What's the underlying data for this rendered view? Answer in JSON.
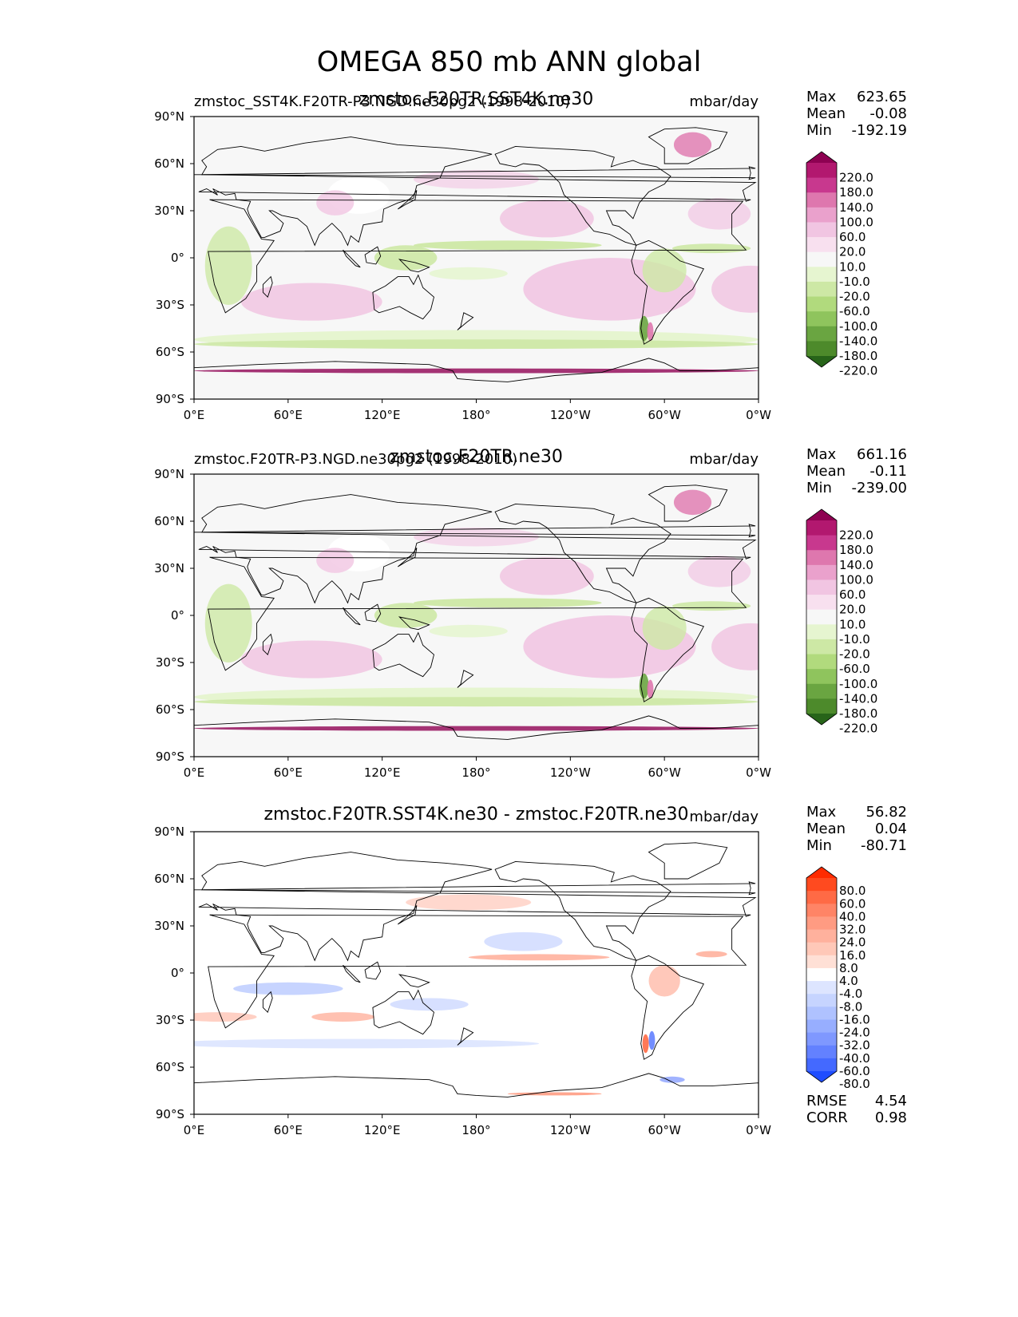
{
  "title": "OMEGA 850 mb ANN global",
  "axes": {
    "lat_ticks": [
      "90°N",
      "60°N",
      "30°N",
      "0°",
      "30°S",
      "60°S",
      "90°S"
    ],
    "lon_ticks": [
      "0°E",
      "60°E",
      "120°E",
      "180°",
      "120°W",
      "60°W",
      "0°W"
    ]
  },
  "panels": [
    {
      "left_label": "zmstoc_SST4K.F20TR-P3.NGD.ne30pg2 (1998-2010)",
      "center_label": "zmstoc.F20TR.SST4K.ne30",
      "units": "mbar/day",
      "stats": [
        {
          "name": "Max",
          "value": "623.65"
        },
        {
          "name": "Mean",
          "value": "-0.08"
        },
        {
          "name": "Min",
          "value": "-192.19"
        }
      ],
      "cbar_levels": [
        "220.0",
        "180.0",
        "140.0",
        "100.0",
        "60.0",
        "20.0",
        "10.0",
        "-10.0",
        "-20.0",
        "-60.0",
        "-100.0",
        "-140.0",
        "-180.0",
        "-220.0"
      ],
      "cbar_colors": [
        "#8e0152",
        "#b2186f",
        "#c8388e",
        "#de77ae",
        "#eaa1cc",
        "#f1c5e2",
        "#f8e0ef",
        "#f7f7f7",
        "#e6f5d0",
        "#cde8a5",
        "#b1da7d",
        "#8fc45d",
        "#6aa541",
        "#4d8a2b",
        "#276419"
      ],
      "scheme": "abs"
    },
    {
      "left_label": "zmstoc.F20TR-P3.NGD.ne30pg2 (1998-2010)",
      "center_label": "zmstoc.F20TR.ne30",
      "units": "mbar/day",
      "stats": [
        {
          "name": "Max",
          "value": "661.16"
        },
        {
          "name": "Mean",
          "value": "-0.11"
        },
        {
          "name": "Min",
          "value": "-239.00"
        }
      ],
      "cbar_levels": [
        "220.0",
        "180.0",
        "140.0",
        "100.0",
        "60.0",
        "20.0",
        "10.0",
        "-10.0",
        "-20.0",
        "-60.0",
        "-100.0",
        "-140.0",
        "-180.0",
        "-220.0"
      ],
      "cbar_colors": [
        "#8e0152",
        "#b2186f",
        "#c8388e",
        "#de77ae",
        "#eaa1cc",
        "#f1c5e2",
        "#f8e0ef",
        "#f7f7f7",
        "#e6f5d0",
        "#cde8a5",
        "#b1da7d",
        "#8fc45d",
        "#6aa541",
        "#4d8a2b",
        "#276419"
      ],
      "scheme": "abs"
    },
    {
      "left_label": "",
      "center_label": "zmstoc.F20TR.SST4K.ne30 - zmstoc.F20TR.ne30",
      "units": "mbar/day",
      "stats": [
        {
          "name": "Max",
          "value": "56.82"
        },
        {
          "name": "Mean",
          "value": "0.04"
        },
        {
          "name": "Min",
          "value": "-80.71"
        }
      ],
      "extra_stats": [
        {
          "name": "RMSE",
          "value": "4.54"
        },
        {
          "name": "CORR",
          "value": "0.98"
        }
      ],
      "cbar_levels": [
        "80.0",
        "60.0",
        "40.0",
        "32.0",
        "24.0",
        "16.0",
        "8.0",
        "4.0",
        "-4.0",
        "-8.0",
        "-16.0",
        "-24.0",
        "-32.0",
        "-40.0",
        "-60.0",
        "-80.0"
      ],
      "cbar_colors": [
        "#ff2b00",
        "#ff4a1f",
        "#ff6a45",
        "#ff8466",
        "#ff9b82",
        "#ffb19d",
        "#ffc8b8",
        "#ffe0d6",
        "#ffffff",
        "#dde5ff",
        "#c6d4ff",
        "#afc2ff",
        "#97aeff",
        "#7f98ff",
        "#6381ff",
        "#4469ff",
        "#1f4dff"
      ],
      "scheme": "diff"
    }
  ]
}
